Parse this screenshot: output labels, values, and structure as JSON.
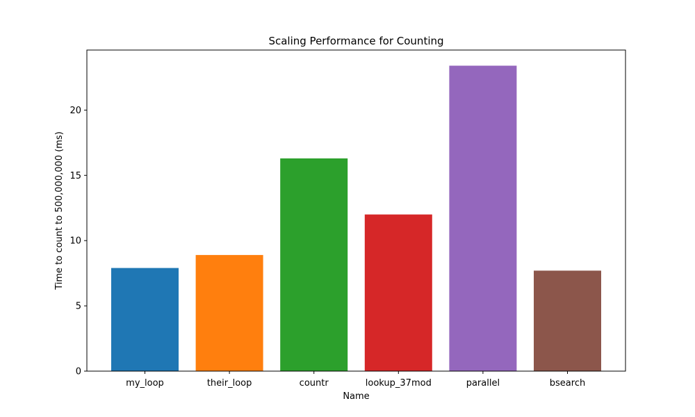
{
  "chart_data": {
    "type": "bar",
    "title": "Scaling Performance for Counting",
    "xlabel": "Name",
    "ylabel": "Time to count to 500,000,000 (ms)",
    "categories": [
      "my_loop",
      "their_loop",
      "countr",
      "lookup_37mod",
      "parallel",
      "bsearch"
    ],
    "values": [
      7.9,
      8.9,
      16.3,
      12.0,
      23.4,
      7.7
    ],
    "colors": [
      "#1f77b4",
      "#ff7f0e",
      "#2ca02c",
      "#d62728",
      "#9467bd",
      "#8c564b"
    ],
    "ylim": [
      0,
      24.6
    ],
    "yticks": [
      0,
      5,
      10,
      15,
      20
    ],
    "grid": false,
    "legend": "none"
  }
}
